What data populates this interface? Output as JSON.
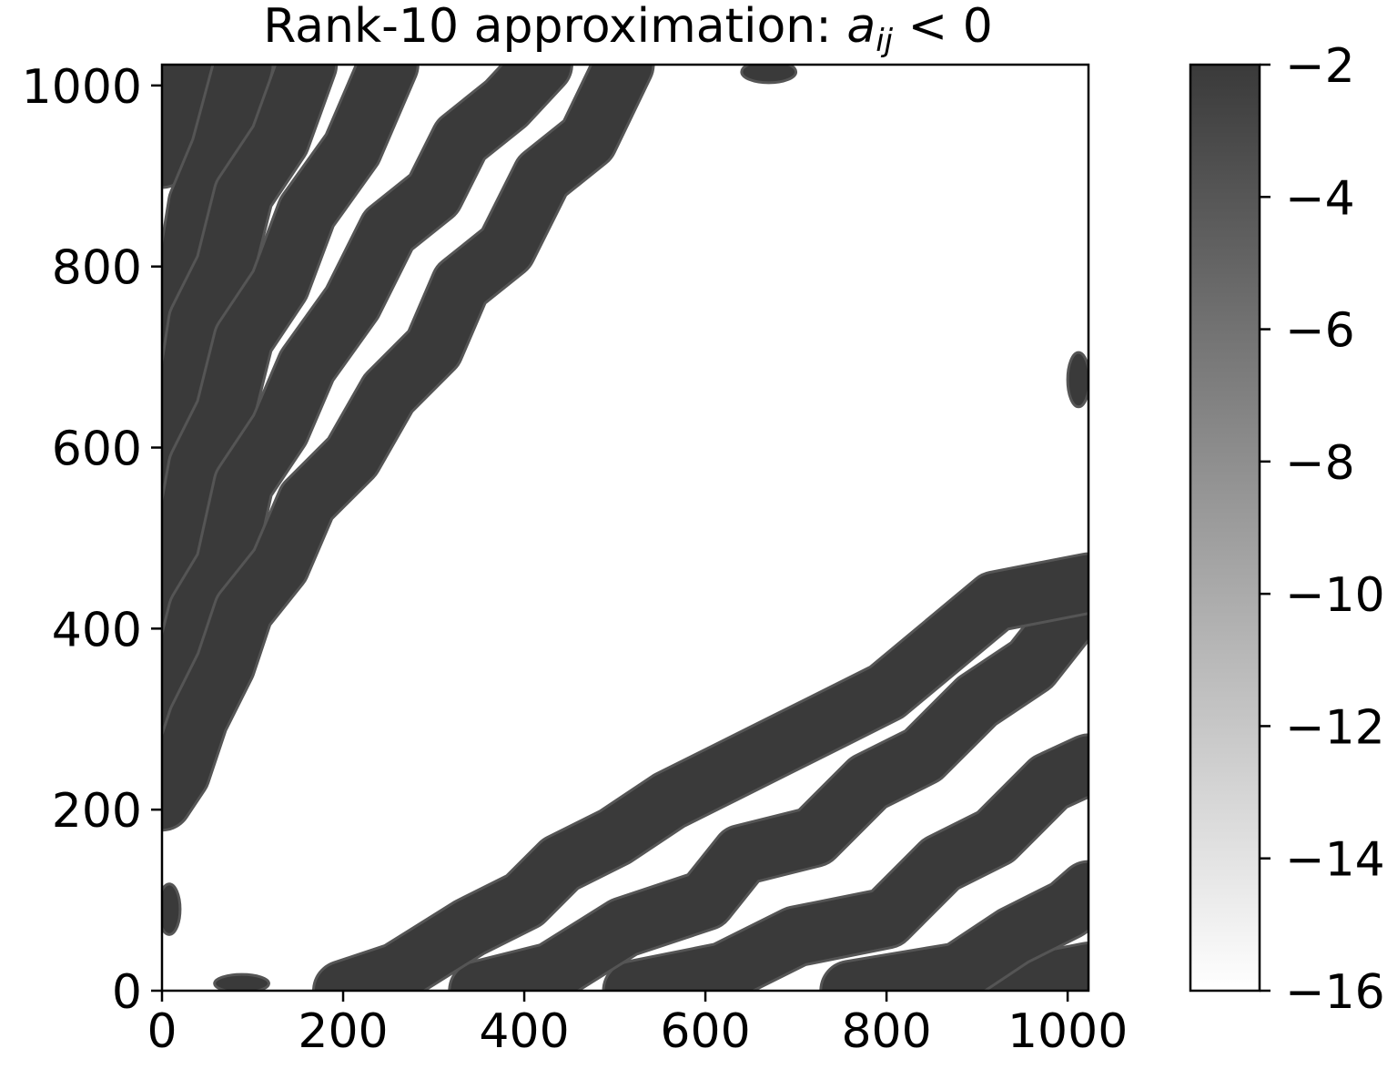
{
  "chart_data": {
    "type": "heatmap",
    "title_prefix": "Rank-10 approximation: ",
    "title_math_var": "a",
    "title_math_sub": "ij",
    "title_math_rel": " < 0",
    "xlim": [
      0,
      1023
    ],
    "ylim": [
      0,
      1023
    ],
    "xticks": [
      0,
      200,
      400,
      600,
      800,
      1000
    ],
    "yticks": [
      0,
      200,
      400,
      600,
      800,
      1000
    ],
    "grid": false,
    "colormap": "grey",
    "colorbar": {
      "range": [
        -16,
        -2
      ],
      "ticks": [
        -2,
        -4,
        -6,
        -8,
        -10,
        -12,
        -14,
        -16
      ],
      "low_color": "#ffffff",
      "high_color": "#3a3a3a"
    },
    "band_color": "#3a3a3a",
    "band_edge_color": "#555555",
    "upper_left_bands": [
      {
        "name": "band-0",
        "points": [
          [
            0,
            920
          ],
          [
            20,
            930
          ],
          [
            30,
            1023
          ]
        ]
      },
      {
        "name": "band-1",
        "points": [
          [
            0,
            700
          ],
          [
            20,
            745
          ],
          [
            40,
            870
          ],
          [
            65,
            930
          ],
          [
            90,
            1023
          ]
        ]
      },
      {
        "name": "band-2",
        "points": [
          [
            0,
            560
          ],
          [
            20,
            610
          ],
          [
            40,
            740
          ],
          [
            70,
            800
          ],
          [
            90,
            880
          ],
          [
            130,
            940
          ],
          [
            160,
            1023
          ]
        ]
      },
      {
        "name": "band-3",
        "points": [
          [
            0,
            420
          ],
          [
            20,
            470
          ],
          [
            40,
            580
          ],
          [
            70,
            640
          ],
          [
            90,
            720
          ],
          [
            130,
            780
          ],
          [
            160,
            860
          ],
          [
            210,
            930
          ],
          [
            250,
            1023
          ]
        ]
      },
      {
        "name": "band-4",
        "points": [
          [
            0,
            300
          ],
          [
            20,
            340
          ],
          [
            40,
            420
          ],
          [
            70,
            470
          ],
          [
            90,
            560
          ],
          [
            130,
            620
          ],
          [
            160,
            690
          ],
          [
            210,
            760
          ],
          [
            250,
            840
          ],
          [
            300,
            880
          ],
          [
            330,
            940
          ],
          [
            380,
            980
          ],
          [
            420,
            1023
          ]
        ]
      },
      {
        "name": "band-5",
        "points": [
          [
            0,
            210
          ],
          [
            20,
            240
          ],
          [
            40,
            300
          ],
          [
            70,
            360
          ],
          [
            90,
            420
          ],
          [
            130,
            470
          ],
          [
            160,
            540
          ],
          [
            210,
            590
          ],
          [
            250,
            660
          ],
          [
            300,
            710
          ],
          [
            330,
            780
          ],
          [
            380,
            820
          ],
          [
            420,
            900
          ],
          [
            470,
            940
          ],
          [
            510,
            1023
          ]
        ]
      }
    ],
    "lower_right_bands": [
      {
        "name": "band-6",
        "points": [
          [
            920,
            0
          ],
          [
            1023,
            20
          ]
        ]
      },
      {
        "name": "band-7",
        "points": [
          [
            760,
            0
          ],
          [
            880,
            20
          ],
          [
            940,
            60
          ],
          [
            1000,
            90
          ],
          [
            1023,
            110
          ]
        ]
      },
      {
        "name": "band-8",
        "points": [
          [
            520,
            0
          ],
          [
            620,
            20
          ],
          [
            700,
            60
          ],
          [
            800,
            80
          ],
          [
            860,
            140
          ],
          [
            920,
            170
          ],
          [
            980,
            230
          ],
          [
            1023,
            250
          ]
        ]
      },
      {
        "name": "band-9",
        "points": [
          [
            350,
            0
          ],
          [
            430,
            20
          ],
          [
            510,
            70
          ],
          [
            600,
            100
          ],
          [
            640,
            150
          ],
          [
            720,
            170
          ],
          [
            780,
            230
          ],
          [
            840,
            260
          ],
          [
            900,
            320
          ],
          [
            960,
            360
          ],
          [
            1023,
            440
          ]
        ]
      },
      {
        "name": "band-10",
        "points": [
          [
            200,
            0
          ],
          [
            260,
            20
          ],
          [
            340,
            70
          ],
          [
            400,
            100
          ],
          [
            440,
            140
          ],
          [
            500,
            170
          ],
          [
            560,
            210
          ],
          [
            620,
            240
          ],
          [
            680,
            270
          ],
          [
            740,
            300
          ],
          [
            800,
            330
          ],
          [
            860,
            380
          ],
          [
            920,
            430
          ],
          [
            1023,
            450
          ]
        ]
      }
    ],
    "blobs": [
      {
        "name": "blob-left",
        "x": 8,
        "y": 90,
        "rx": 12,
        "ry": 28
      },
      {
        "name": "blob-bottom",
        "x": 88,
        "y": 8,
        "rx": 30,
        "ry": 10
      },
      {
        "name": "blob-top",
        "x": 670,
        "y": 1015,
        "rx": 30,
        "ry": 12
      },
      {
        "name": "blob-right",
        "x": 1012,
        "y": 675,
        "rx": 12,
        "ry": 30
      }
    ]
  }
}
